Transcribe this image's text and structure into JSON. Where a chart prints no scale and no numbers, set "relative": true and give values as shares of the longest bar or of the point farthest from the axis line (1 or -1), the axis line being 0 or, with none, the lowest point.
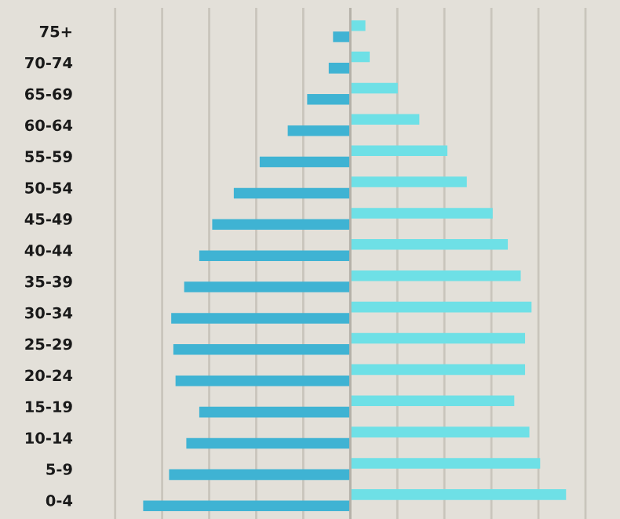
{
  "chart_data": {
    "type": "bar",
    "orientation": "horizontal",
    "relative": true,
    "grid": "x",
    "legend": false,
    "tick_labels": "y",
    "categories": [
      "75+",
      "70-74",
      "65-69",
      "60-64",
      "55-59",
      "50-54",
      "45-49",
      "40-44",
      "35-39",
      "30-34",
      "25-29",
      "20-24",
      "15-19",
      "10-14",
      "5-9",
      "0-4"
    ],
    "series": [
      {
        "color": "#3fb3d3",
        "values": [
          -0.08,
          -0.1,
          -0.2,
          -0.29,
          -0.42,
          -0.54,
          -0.64,
          -0.7,
          -0.77,
          -0.83,
          -0.82,
          -0.81,
          -0.7,
          -0.76,
          -0.84,
          -0.96
        ]
      },
      {
        "color": "#6ee0e6",
        "values": [
          0.07,
          0.09,
          0.22,
          0.32,
          0.45,
          0.54,
          0.66,
          0.73,
          0.79,
          0.84,
          0.81,
          0.81,
          0.76,
          0.83,
          0.88,
          1
        ]
      }
    ]
  }
}
